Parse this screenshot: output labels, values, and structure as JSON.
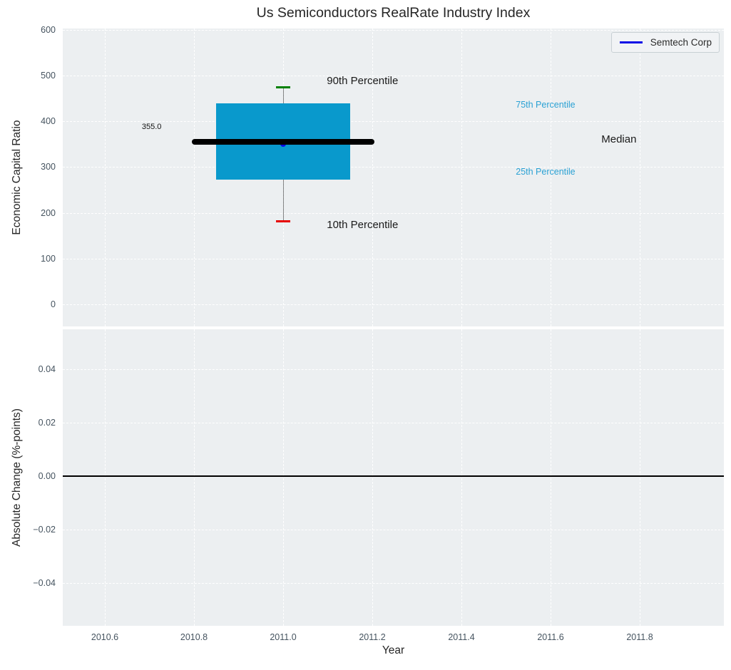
{
  "title": "Us Semiconductors RealRate Industry Index",
  "legend": {
    "label": "Semtech Corp",
    "line_color": "#0a0ae6"
  },
  "colors": {
    "axes_bg": "#eceff1",
    "grid": "#ffffff",
    "box_fill": "#0999cc",
    "median_line": "#000000",
    "whisker": "#555555",
    "cap_high": "#008000",
    "cap_low": "#e60000",
    "company_dot": "#0a0ae6",
    "zero_line": "#000000",
    "tick_label": "#45535f",
    "axis_label": "#262626",
    "cyan_annotation": "#2aa1d4",
    "black_annotation": "#1a1a1a"
  },
  "chart_data": [
    {
      "type": "boxplot",
      "title": "Us Semiconductors RealRate Industry Index",
      "ylabel": "Economic Capital Ratio",
      "legend_position": "upper right",
      "grid": true,
      "x_center": 2011.0,
      "percentiles": {
        "p10": 181,
        "p25": 273,
        "median": 355,
        "p75": 440,
        "p90": 475
      },
      "median_label": "355.0",
      "company_point": {
        "name": "Semtech Corp",
        "x": 2011.0,
        "y": 350
      },
      "box_x": [
        2010.85,
        2011.15
      ],
      "median_x": [
        2010.795,
        2011.205
      ],
      "cap_halfwidth": 0.016,
      "xlim": [
        2010.5056,
        2011.9888
      ],
      "ylim": [
        -48.3,
        603.1
      ],
      "xticks": [
        {
          "v": 2010.6,
          "label": "2010.6"
        },
        {
          "v": 2010.8,
          "label": "2010.8"
        },
        {
          "v": 2011.0,
          "label": "2011.0"
        },
        {
          "v": 2011.2,
          "label": "2011.2"
        },
        {
          "v": 2011.4,
          "label": "2011.4"
        },
        {
          "v": 2011.6,
          "label": "2011.6"
        },
        {
          "v": 2011.8,
          "label": "2011.8"
        }
      ],
      "yticks": [
        {
          "v": 600,
          "label": "600"
        },
        {
          "v": 500,
          "label": "500"
        },
        {
          "v": 400,
          "label": "400"
        },
        {
          "v": 300,
          "label": "300"
        },
        {
          "v": 200,
          "label": "200"
        },
        {
          "v": 100,
          "label": "100"
        },
        {
          "v": 0,
          "label": "0"
        }
      ],
      "annotations": [
        {
          "text": "90th Percentile",
          "x": 2011.098,
          "y": 485,
          "size": 15,
          "color": "#1a1a1a"
        },
        {
          "text": "10th Percentile",
          "x": 2011.098,
          "y": 170,
          "size": 15,
          "color": "#1a1a1a"
        },
        {
          "text": "75th Percentile",
          "x": 2011.522,
          "y": 433,
          "size": 12.5,
          "color": "#2aa1d4"
        },
        {
          "text": "25th Percentile",
          "x": 2011.522,
          "y": 287,
          "size": 12.5,
          "color": "#2aa1d4"
        },
        {
          "text": "Median",
          "x": 2011.714,
          "y": 357,
          "size": 15,
          "color": "#1a1a1a"
        },
        {
          "text": "355.0",
          "x": 2010.683,
          "y": 385,
          "size": 11,
          "color": "#111111"
        }
      ]
    },
    {
      "type": "line",
      "ylabel": "Absolute Change (%-points)",
      "xlabel": "Year",
      "grid": true,
      "zero_line": 0.0,
      "xlim": [
        2010.5056,
        2011.9888
      ],
      "ylim": [
        -0.056,
        0.0549
      ],
      "xticks": [
        {
          "v": 2010.6,
          "label": "2010.6"
        },
        {
          "v": 2010.8,
          "label": "2010.8"
        },
        {
          "v": 2011.0,
          "label": "2011.0"
        },
        {
          "v": 2011.2,
          "label": "2011.2"
        },
        {
          "v": 2011.4,
          "label": "2011.4"
        },
        {
          "v": 2011.6,
          "label": "2011.6"
        },
        {
          "v": 2011.8,
          "label": "2011.8"
        }
      ],
      "yticks": [
        {
          "v": 0.04,
          "label": "0.04"
        },
        {
          "v": 0.02,
          "label": "0.02"
        },
        {
          "v": 0,
          "label": "0.00"
        },
        {
          "v": -0.02,
          "label": "−0.02"
        },
        {
          "v": -0.04,
          "label": "−0.04"
        }
      ]
    }
  ]
}
